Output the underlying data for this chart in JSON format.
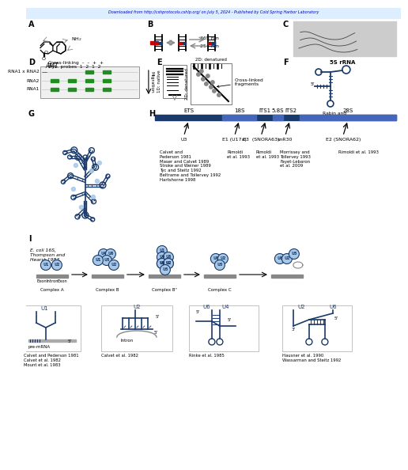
{
  "title_text": "Downloaded from http://cshprotocols.cshlp.org/ on July 5, 2024 - Published by Cold Spring Harbor Laboratory",
  "color_blue": "#1F3E7A",
  "color_green": "#228B22",
  "color_gray": "#888888",
  "color_red": "#CC0000",
  "color_light_blue": "#A8C8E8",
  "color_dark_blue": "#1A3A6B",
  "color_mid_blue": "#3355AA",
  "bg_color": "#FFFFFF",
  "panel_H_regions": [
    "ETS",
    "18S",
    "ITS1",
    "5.8S",
    "ITS2",
    "28S"
  ],
  "panel_I_bottom_labels": [
    "Calvet and Pederson 1981\nCalvet et al. 1982\nMount et al. 1983",
    "Calvet et al. 1982",
    "Rinke et al. 1985",
    "Hausner et al. 1990\nWassarman and Steitz 1992"
  ]
}
